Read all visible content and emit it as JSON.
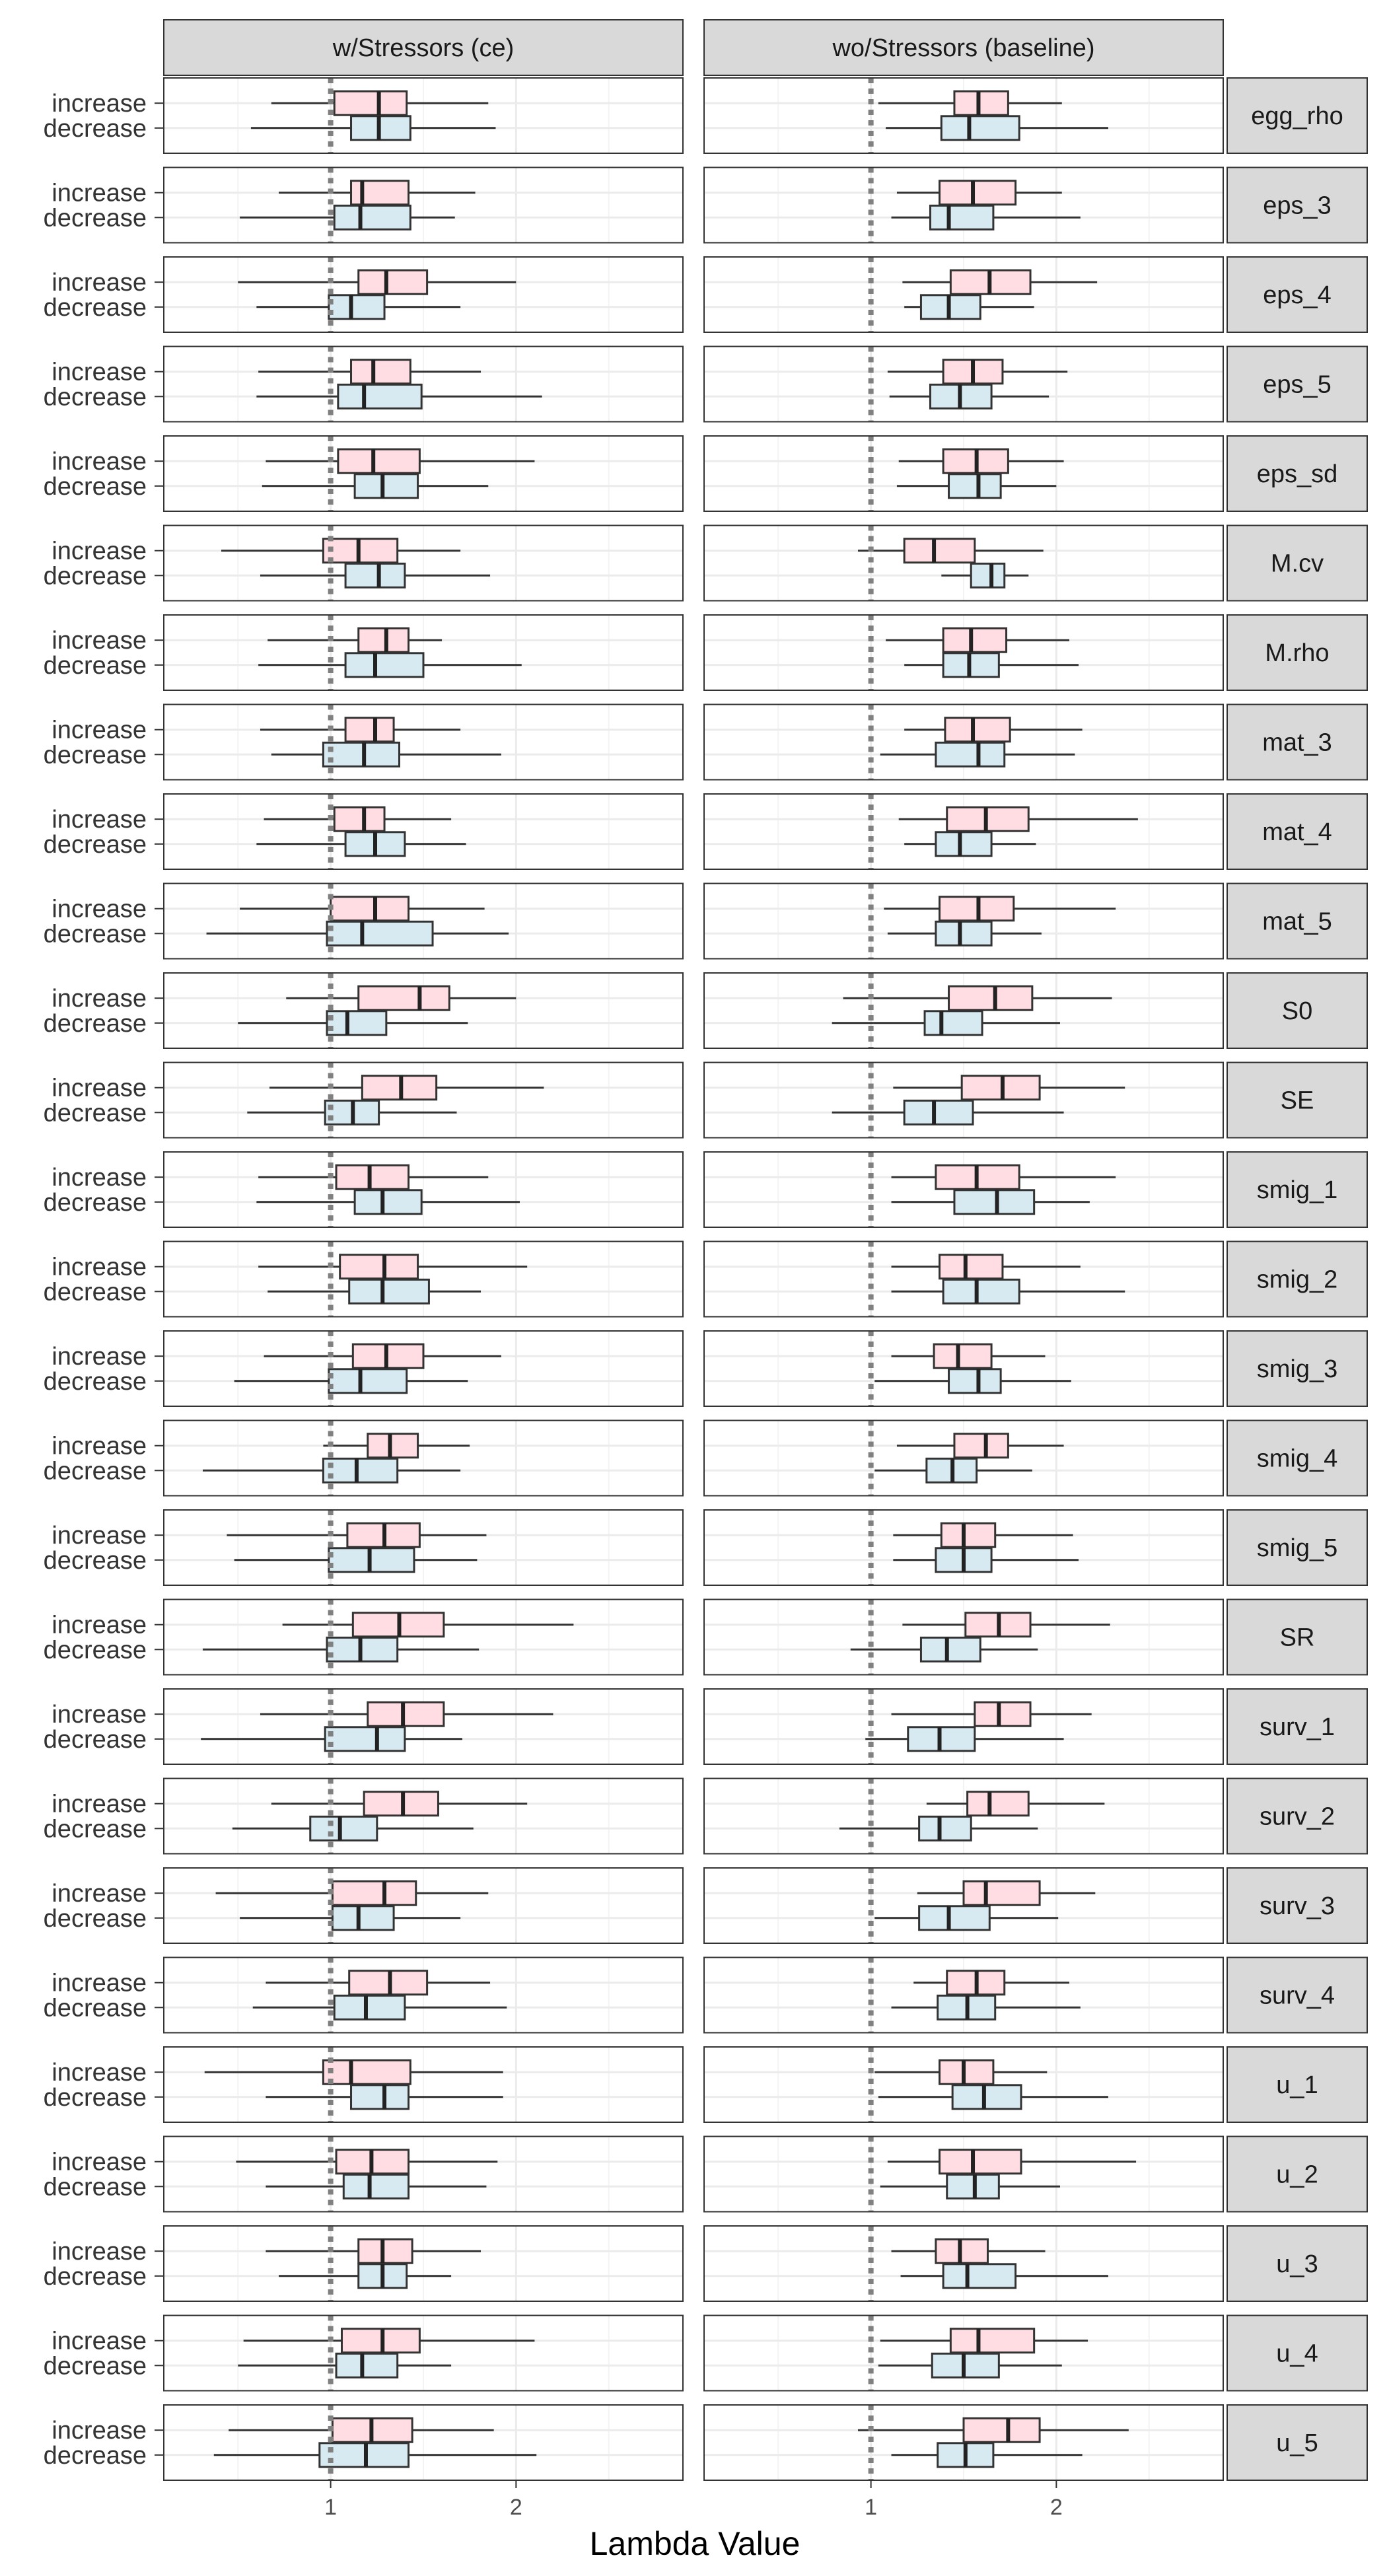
{
  "chart_data": {
    "type": "boxplot",
    "xlabel": "Lambda Value",
    "xlim": [
      0.1,
      2.9
    ],
    "xticks": [
      1,
      2
    ],
    "xtick_labels": [
      "1",
      "2"
    ],
    "reference_line_x": 1,
    "grid": true,
    "colors": {
      "increase": "#ffdde3",
      "decrease": "#d8eaf1",
      "reference": "#808080",
      "strip_fill": "#d9d9d9",
      "grid": "#ebebeb"
    },
    "columns": [
      "w/Stressors (ce)",
      "wo/Stressors (baseline)"
    ],
    "categories": [
      "increase",
      "decrease"
    ],
    "rows": [
      {
        "label": "egg_rho",
        "ce": {
          "increase": [
            0.68,
            1.02,
            1.26,
            1.41,
            1.85
          ],
          "decrease": [
            0.57,
            1.11,
            1.26,
            1.43,
            1.89
          ]
        },
        "baseline": {
          "increase": [
            1.04,
            1.45,
            1.58,
            1.74,
            2.03
          ],
          "decrease": [
            1.08,
            1.38,
            1.53,
            1.8,
            2.28
          ]
        }
      },
      {
        "label": "eps_3",
        "ce": {
          "increase": [
            0.72,
            1.11,
            1.17,
            1.42,
            1.78
          ],
          "decrease": [
            0.51,
            1.02,
            1.16,
            1.43,
            1.67
          ]
        },
        "baseline": {
          "increase": [
            1.14,
            1.37,
            1.55,
            1.78,
            2.03
          ],
          "decrease": [
            1.11,
            1.32,
            1.42,
            1.66,
            2.13
          ]
        }
      },
      {
        "label": "eps_4",
        "ce": {
          "increase": [
            0.5,
            1.15,
            1.3,
            1.52,
            2.0
          ],
          "decrease": [
            0.6,
            0.99,
            1.11,
            1.29,
            1.7
          ]
        },
        "baseline": {
          "increase": [
            1.17,
            1.43,
            1.64,
            1.86,
            2.22
          ],
          "decrease": [
            1.18,
            1.27,
            1.42,
            1.59,
            1.88
          ]
        }
      },
      {
        "label": "eps_5",
        "ce": {
          "increase": [
            0.61,
            1.11,
            1.23,
            1.43,
            1.81
          ],
          "decrease": [
            0.6,
            1.04,
            1.18,
            1.49,
            2.14
          ]
        },
        "baseline": {
          "increase": [
            1.09,
            1.39,
            1.55,
            1.71,
            2.06
          ],
          "decrease": [
            1.1,
            1.32,
            1.48,
            1.65,
            1.96
          ]
        }
      },
      {
        "label": "eps_sd",
        "ce": {
          "increase": [
            0.65,
            1.04,
            1.23,
            1.48,
            2.1
          ],
          "decrease": [
            0.63,
            1.13,
            1.28,
            1.47,
            1.85
          ]
        },
        "baseline": {
          "increase": [
            1.15,
            1.39,
            1.57,
            1.74,
            2.04
          ],
          "decrease": [
            1.14,
            1.42,
            1.58,
            1.7,
            2.0
          ]
        }
      },
      {
        "label": "M.cv",
        "ce": {
          "increase": [
            0.41,
            0.96,
            1.15,
            1.36,
            1.7
          ],
          "decrease": [
            0.62,
            1.08,
            1.26,
            1.4,
            1.86
          ]
        },
        "baseline": {
          "increase": [
            0.93,
            1.18,
            1.34,
            1.56,
            1.93
          ],
          "decrease": [
            1.38,
            1.54,
            1.65,
            1.72,
            1.85
          ]
        }
      },
      {
        "label": "M.rho",
        "ce": {
          "increase": [
            0.66,
            1.15,
            1.3,
            1.42,
            1.6
          ],
          "decrease": [
            0.61,
            1.08,
            1.24,
            1.5,
            2.03
          ]
        },
        "baseline": {
          "increase": [
            1.08,
            1.39,
            1.54,
            1.73,
            2.07
          ],
          "decrease": [
            1.18,
            1.39,
            1.53,
            1.69,
            2.12
          ]
        }
      },
      {
        "label": "mat_3",
        "ce": {
          "increase": [
            0.62,
            1.08,
            1.24,
            1.34,
            1.7
          ],
          "decrease": [
            0.68,
            0.96,
            1.18,
            1.37,
            1.92
          ]
        },
        "baseline": {
          "increase": [
            1.18,
            1.4,
            1.55,
            1.75,
            2.14
          ],
          "decrease": [
            1.05,
            1.35,
            1.58,
            1.72,
            2.1
          ]
        }
      },
      {
        "label": "mat_4",
        "ce": {
          "increase": [
            0.64,
            1.02,
            1.18,
            1.29,
            1.65
          ],
          "decrease": [
            0.6,
            1.08,
            1.24,
            1.4,
            1.73
          ]
        },
        "baseline": {
          "increase": [
            1.15,
            1.41,
            1.62,
            1.85,
            2.44
          ],
          "decrease": [
            1.18,
            1.35,
            1.48,
            1.65,
            1.89
          ]
        }
      },
      {
        "label": "mat_5",
        "ce": {
          "increase": [
            0.51,
            1.0,
            1.24,
            1.42,
            1.83
          ],
          "decrease": [
            0.33,
            0.98,
            1.17,
            1.55,
            1.96
          ]
        },
        "baseline": {
          "increase": [
            1.07,
            1.37,
            1.58,
            1.77,
            2.32
          ],
          "decrease": [
            1.09,
            1.35,
            1.48,
            1.65,
            1.92
          ]
        }
      },
      {
        "label": "S0",
        "ce": {
          "increase": [
            0.76,
            1.15,
            1.48,
            1.64,
            2.0
          ],
          "decrease": [
            0.5,
            0.98,
            1.09,
            1.3,
            1.74
          ]
        },
        "baseline": {
          "increase": [
            0.85,
            1.42,
            1.67,
            1.87,
            2.3
          ],
          "decrease": [
            0.79,
            1.29,
            1.38,
            1.6,
            2.02
          ]
        }
      },
      {
        "label": "SE",
        "ce": {
          "increase": [
            0.67,
            1.17,
            1.38,
            1.57,
            2.15
          ],
          "decrease": [
            0.55,
            0.97,
            1.12,
            1.26,
            1.68
          ]
        },
        "baseline": {
          "increase": [
            1.12,
            1.49,
            1.71,
            1.91,
            2.37
          ],
          "decrease": [
            0.79,
            1.18,
            1.34,
            1.55,
            2.04
          ]
        }
      },
      {
        "label": "smig_1",
        "ce": {
          "increase": [
            0.61,
            1.03,
            1.21,
            1.42,
            1.85
          ],
          "decrease": [
            0.6,
            1.13,
            1.28,
            1.49,
            2.02
          ]
        },
        "baseline": {
          "increase": [
            1.11,
            1.35,
            1.57,
            1.8,
            2.32
          ],
          "decrease": [
            1.11,
            1.45,
            1.68,
            1.88,
            2.18
          ]
        }
      },
      {
        "label": "smig_2",
        "ce": {
          "increase": [
            0.61,
            1.05,
            1.29,
            1.47,
            2.06
          ],
          "decrease": [
            0.66,
            1.1,
            1.28,
            1.53,
            1.81
          ]
        },
        "baseline": {
          "increase": [
            1.11,
            1.37,
            1.51,
            1.71,
            2.13
          ],
          "decrease": [
            1.11,
            1.39,
            1.57,
            1.8,
            2.37
          ]
        }
      },
      {
        "label": "smig_3",
        "ce": {
          "increase": [
            0.64,
            1.12,
            1.3,
            1.5,
            1.92
          ],
          "decrease": [
            0.48,
            0.99,
            1.16,
            1.41,
            1.74
          ]
        },
        "baseline": {
          "increase": [
            1.11,
            1.34,
            1.47,
            1.65,
            1.94
          ],
          "decrease": [
            1.02,
            1.42,
            1.58,
            1.7,
            2.08
          ]
        }
      },
      {
        "label": "smig_4",
        "ce": {
          "increase": [
            0.96,
            1.2,
            1.32,
            1.47,
            1.75
          ],
          "decrease": [
            0.31,
            0.96,
            1.14,
            1.36,
            1.7
          ]
        },
        "baseline": {
          "increase": [
            1.14,
            1.45,
            1.62,
            1.74,
            2.04
          ],
          "decrease": [
            1.02,
            1.3,
            1.44,
            1.57,
            1.87
          ]
        }
      },
      {
        "label": "smig_5",
        "ce": {
          "increase": [
            0.44,
            1.09,
            1.29,
            1.48,
            1.84
          ],
          "decrease": [
            0.48,
            0.99,
            1.21,
            1.45,
            1.79
          ]
        },
        "baseline": {
          "increase": [
            1.12,
            1.38,
            1.5,
            1.67,
            2.09
          ],
          "decrease": [
            1.12,
            1.35,
            1.5,
            1.65,
            2.12
          ]
        }
      },
      {
        "label": "SR",
        "ce": {
          "increase": [
            0.74,
            1.12,
            1.37,
            1.61,
            2.31
          ],
          "decrease": [
            0.31,
            0.98,
            1.16,
            1.36,
            1.8
          ]
        },
        "baseline": {
          "increase": [
            1.17,
            1.51,
            1.69,
            1.86,
            2.29
          ],
          "decrease": [
            0.89,
            1.27,
            1.41,
            1.59,
            1.9
          ]
        }
      },
      {
        "label": "surv_1",
        "ce": {
          "increase": [
            0.62,
            1.2,
            1.39,
            1.61,
            2.2
          ],
          "decrease": [
            0.3,
            0.97,
            1.25,
            1.4,
            1.71
          ]
        },
        "baseline": {
          "increase": [
            1.11,
            1.56,
            1.69,
            1.86,
            2.19
          ],
          "decrease": [
            0.97,
            1.2,
            1.37,
            1.56,
            2.04
          ]
        }
      },
      {
        "label": "surv_2",
        "ce": {
          "increase": [
            0.68,
            1.18,
            1.39,
            1.58,
            2.06
          ],
          "decrease": [
            0.47,
            0.89,
            1.05,
            1.25,
            1.77
          ]
        },
        "baseline": {
          "increase": [
            1.3,
            1.52,
            1.64,
            1.85,
            2.26
          ],
          "decrease": [
            0.83,
            1.26,
            1.37,
            1.54,
            1.9
          ]
        }
      },
      {
        "label": "surv_3",
        "ce": {
          "increase": [
            0.38,
            1.01,
            1.29,
            1.46,
            1.85
          ],
          "decrease": [
            0.51,
            1.01,
            1.15,
            1.34,
            1.7
          ]
        },
        "baseline": {
          "increase": [
            1.25,
            1.5,
            1.62,
            1.91,
            2.21
          ],
          "decrease": [
            1.02,
            1.26,
            1.42,
            1.64,
            2.01
          ]
        }
      },
      {
        "label": "surv_4",
        "ce": {
          "increase": [
            0.65,
            1.1,
            1.32,
            1.52,
            1.86
          ],
          "decrease": [
            0.58,
            1.02,
            1.19,
            1.4,
            1.95
          ]
        },
        "baseline": {
          "increase": [
            1.23,
            1.41,
            1.57,
            1.72,
            2.07
          ],
          "decrease": [
            1.11,
            1.36,
            1.52,
            1.67,
            2.13
          ]
        }
      },
      {
        "label": "u_1",
        "ce": {
          "increase": [
            0.32,
            0.96,
            1.11,
            1.43,
            1.93
          ],
          "decrease": [
            0.65,
            1.11,
            1.29,
            1.42,
            1.93
          ]
        },
        "baseline": {
          "increase": [
            1.02,
            1.37,
            1.5,
            1.66,
            1.95
          ],
          "decrease": [
            1.04,
            1.44,
            1.61,
            1.81,
            2.28
          ]
        }
      },
      {
        "label": "u_2",
        "ce": {
          "increase": [
            0.49,
            1.03,
            1.22,
            1.42,
            1.9
          ],
          "decrease": [
            0.65,
            1.07,
            1.21,
            1.42,
            1.84
          ]
        },
        "baseline": {
          "increase": [
            1.09,
            1.37,
            1.55,
            1.81,
            2.43
          ],
          "decrease": [
            1.05,
            1.41,
            1.56,
            1.69,
            2.02
          ]
        }
      },
      {
        "label": "u_3",
        "ce": {
          "increase": [
            0.65,
            1.15,
            1.28,
            1.44,
            1.81
          ],
          "decrease": [
            0.72,
            1.15,
            1.28,
            1.41,
            1.65
          ]
        },
        "baseline": {
          "increase": [
            1.11,
            1.35,
            1.48,
            1.63,
            1.94
          ],
          "decrease": [
            1.16,
            1.39,
            1.52,
            1.78,
            2.28
          ]
        }
      },
      {
        "label": "u_4",
        "ce": {
          "increase": [
            0.53,
            1.06,
            1.28,
            1.48,
            2.1
          ],
          "decrease": [
            0.5,
            1.03,
            1.17,
            1.36,
            1.65
          ]
        },
        "baseline": {
          "increase": [
            1.05,
            1.43,
            1.58,
            1.88,
            2.17
          ],
          "decrease": [
            1.04,
            1.33,
            1.5,
            1.69,
            2.03
          ]
        }
      },
      {
        "label": "u_5",
        "ce": {
          "increase": [
            0.45,
            1.01,
            1.22,
            1.44,
            1.88
          ],
          "decrease": [
            0.37,
            0.94,
            1.19,
            1.42,
            2.11
          ]
        },
        "baseline": {
          "increase": [
            0.93,
            1.5,
            1.74,
            1.91,
            2.39
          ],
          "decrease": [
            1.11,
            1.36,
            1.51,
            1.66,
            2.14
          ]
        }
      }
    ]
  }
}
